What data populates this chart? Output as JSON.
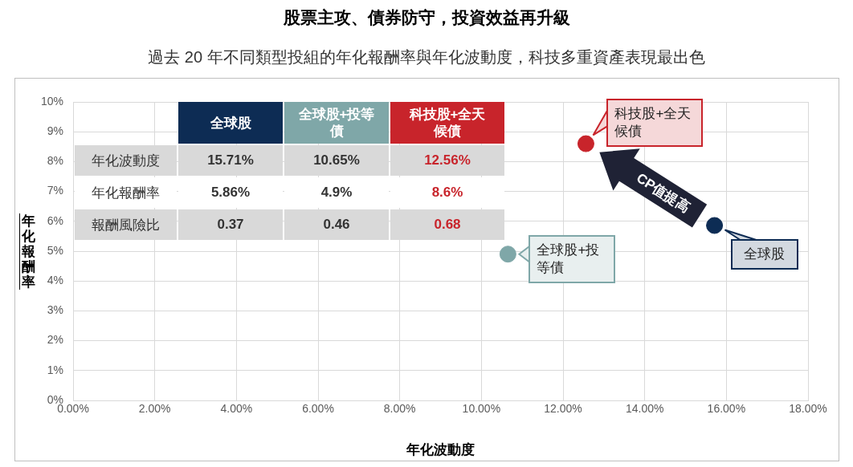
{
  "chart_data": {
    "type": "scatter",
    "title": "股票主攻、債券防守，投資效益再升級",
    "subtitle": "過去 20 年不同類型投組的年化報酬率與年化波動度，科技多重資產表現最出色",
    "xlabel": "年化波動度",
    "ylabel": "年化報酬率",
    "xlim": [
      0,
      18
    ],
    "xticks": [
      {
        "value": 0,
        "label": "0.00%"
      },
      {
        "value": 2,
        "label": "2.00%"
      },
      {
        "value": 4,
        "label": "4.00%"
      },
      {
        "value": 6,
        "label": "6.00%"
      },
      {
        "value": 8,
        "label": "8.00%"
      },
      {
        "value": 10,
        "label": "10.00%"
      },
      {
        "value": 12,
        "label": "12.00%"
      },
      {
        "value": 14,
        "label": "14.00%"
      },
      {
        "value": 16,
        "label": "16.00%"
      },
      {
        "value": 18,
        "label": "18.00%"
      }
    ],
    "ylim": [
      0,
      10
    ],
    "yticks": [
      {
        "value": 0,
        "label": "0%"
      },
      {
        "value": 1,
        "label": "1%"
      },
      {
        "value": 2,
        "label": "2%"
      },
      {
        "value": 3,
        "label": "3%"
      },
      {
        "value": 4,
        "label": "4%"
      },
      {
        "value": 5,
        "label": "5%"
      },
      {
        "value": 6,
        "label": "6%"
      },
      {
        "value": 7,
        "label": "7%"
      },
      {
        "value": 8,
        "label": "8%"
      },
      {
        "value": 9,
        "label": "9%"
      },
      {
        "value": 10,
        "label": "10%"
      }
    ],
    "grid": true,
    "marker": "circle",
    "series": [
      {
        "name": "全球股",
        "color": "#0d2c54",
        "x": [
          15.71
        ],
        "values": [
          5.86
        ]
      },
      {
        "name": "全球股+投等債",
        "color": "#7fa7a8",
        "x": [
          10.65
        ],
        "values": [
          4.9
        ]
      },
      {
        "name": "科技股+全天候債",
        "color": "#c8242b",
        "x": [
          12.56
        ],
        "values": [
          8.6
        ]
      }
    ],
    "annotations": [
      "年化波動度",
      "15.71%",
      "10.65%",
      "12.56%",
      "年化報酬率",
      "5.86%",
      "4.9%",
      "8.6%",
      "報酬風險比",
      "0.37",
      "0.46",
      "0.68",
      "CP值提高"
    ]
  }
}
